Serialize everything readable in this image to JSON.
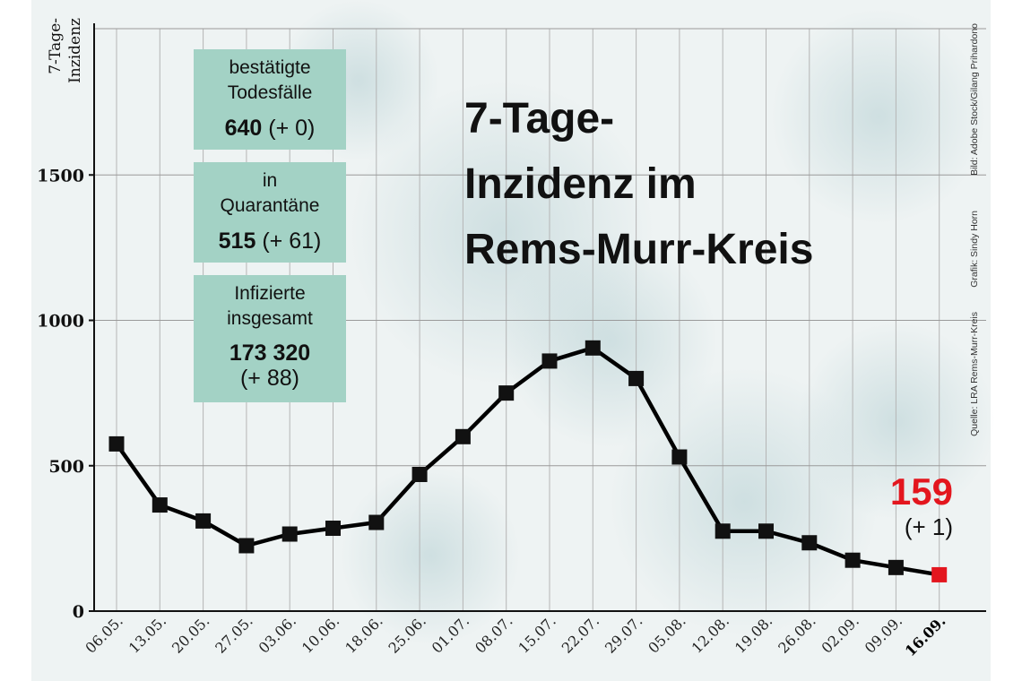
{
  "chart_data": {
    "type": "line",
    "title_lines": [
      "7-Tage-",
      "Inzidenz im",
      "Rems-Murr-Kreis"
    ],
    "ylabel_lines": [
      "7-Tage-",
      "Inzidenz"
    ],
    "xlabel": "",
    "ylim": [
      0,
      2000
    ],
    "y_ticks": [
      "0",
      "500",
      "1000",
      "1500"
    ],
    "y_tick_values": [
      0,
      500,
      1000,
      1500
    ],
    "grid": true,
    "categories": [
      "06.05.",
      "13.05.",
      "20.05.",
      "27.05.",
      "03.06.",
      "10.06.",
      "18.06.",
      "25.06.",
      "01.07.",
      "08.07.",
      "15.07.",
      "22.07.",
      "29.07.",
      "05.08.",
      "12.08.",
      "19.08.",
      "26.08.",
      "02.09.",
      "09.09.",
      "16.09."
    ],
    "series": [
      {
        "values": [
          575,
          365,
          310,
          225,
          265,
          285,
          305,
          470,
          600,
          750,
          860,
          905,
          800,
          530,
          275,
          275,
          235,
          175,
          150,
          125
        ]
      }
    ],
    "latest": {
      "value": "159",
      "delta": "(+ 1)"
    },
    "colors": {
      "line": "#000000",
      "marker": "#111111",
      "last_marker": "#e3161e",
      "box_fill": "#a3d2c5",
      "grid": "#b5b5b5"
    }
  },
  "info_boxes": [
    {
      "lines": [
        "bestätigte",
        "Todesfälle"
      ],
      "value": "640",
      "delta": "(+ 0)"
    },
    {
      "lines": [
        "in",
        "Quarantäne"
      ],
      "value": "515",
      "delta": "(+ 61)"
    },
    {
      "lines": [
        "Infizierte",
        "insgesamt"
      ],
      "value": "173 320",
      "delta": "(+ 88)"
    }
  ],
  "credits": {
    "image": "Bild: Adobe Stock/Gilang Prihardono",
    "graphic": "Grafik: Sindy Horn",
    "source": "Quelle: LRA Rems-Murr-Kreis"
  }
}
